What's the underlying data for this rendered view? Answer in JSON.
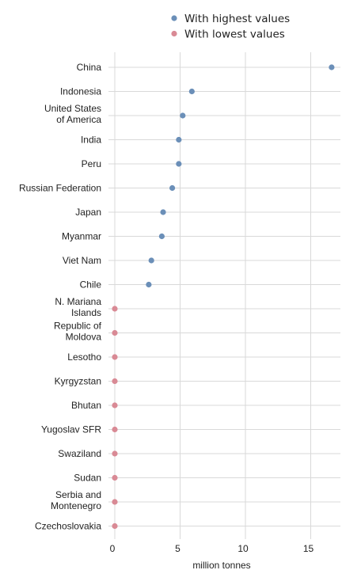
{
  "chart_data": {
    "type": "scatter",
    "xlabel": "million tonnes",
    "xlim": [
      0,
      17
    ],
    "xticks": [
      0,
      5,
      10,
      15
    ],
    "grid": true,
    "legend": {
      "placement": "top",
      "orientation": "vertical"
    },
    "series": [
      {
        "name": "With highest values",
        "color": "#6b8fb8",
        "points": [
          {
            "label": [
              "China"
            ],
            "value": 16.6
          },
          {
            "label": [
              "Indonesia"
            ],
            "value": 5.9
          },
          {
            "label": [
              "United States",
              "of America"
            ],
            "value": 5.2
          },
          {
            "label": [
              "India"
            ],
            "value": 4.9
          },
          {
            "label": [
              "Peru"
            ],
            "value": 4.9
          },
          {
            "label": [
              "Russian Federation"
            ],
            "value": 4.4
          },
          {
            "label": [
              "Japan"
            ],
            "value": 3.7
          },
          {
            "label": [
              "Myanmar"
            ],
            "value": 3.6
          },
          {
            "label": [
              "Viet Nam"
            ],
            "value": 2.8
          },
          {
            "label": [
              "Chile"
            ],
            "value": 2.6
          }
        ]
      },
      {
        "name": "With lowest values",
        "color": "#d98a95",
        "points": [
          {
            "label": [
              "N. Mariana",
              "Islands"
            ],
            "value": 0.0
          },
          {
            "label": [
              "Republic of",
              "Moldova"
            ],
            "value": 0.0
          },
          {
            "label": [
              "Lesotho"
            ],
            "value": 0.0
          },
          {
            "label": [
              "Kyrgyzstan"
            ],
            "value": 0.0
          },
          {
            "label": [
              "Bhutan"
            ],
            "value": 0.0
          },
          {
            "label": [
              "Yugoslav SFR"
            ],
            "value": 0.0
          },
          {
            "label": [
              "Swaziland"
            ],
            "value": 0.0
          },
          {
            "label": [
              "Sudan"
            ],
            "value": 0.0
          },
          {
            "label": [
              "Serbia and",
              "Montenegro"
            ],
            "value": 0.0
          },
          {
            "label": [
              "Czechoslovakia"
            ],
            "value": 0.0
          }
        ]
      }
    ]
  }
}
